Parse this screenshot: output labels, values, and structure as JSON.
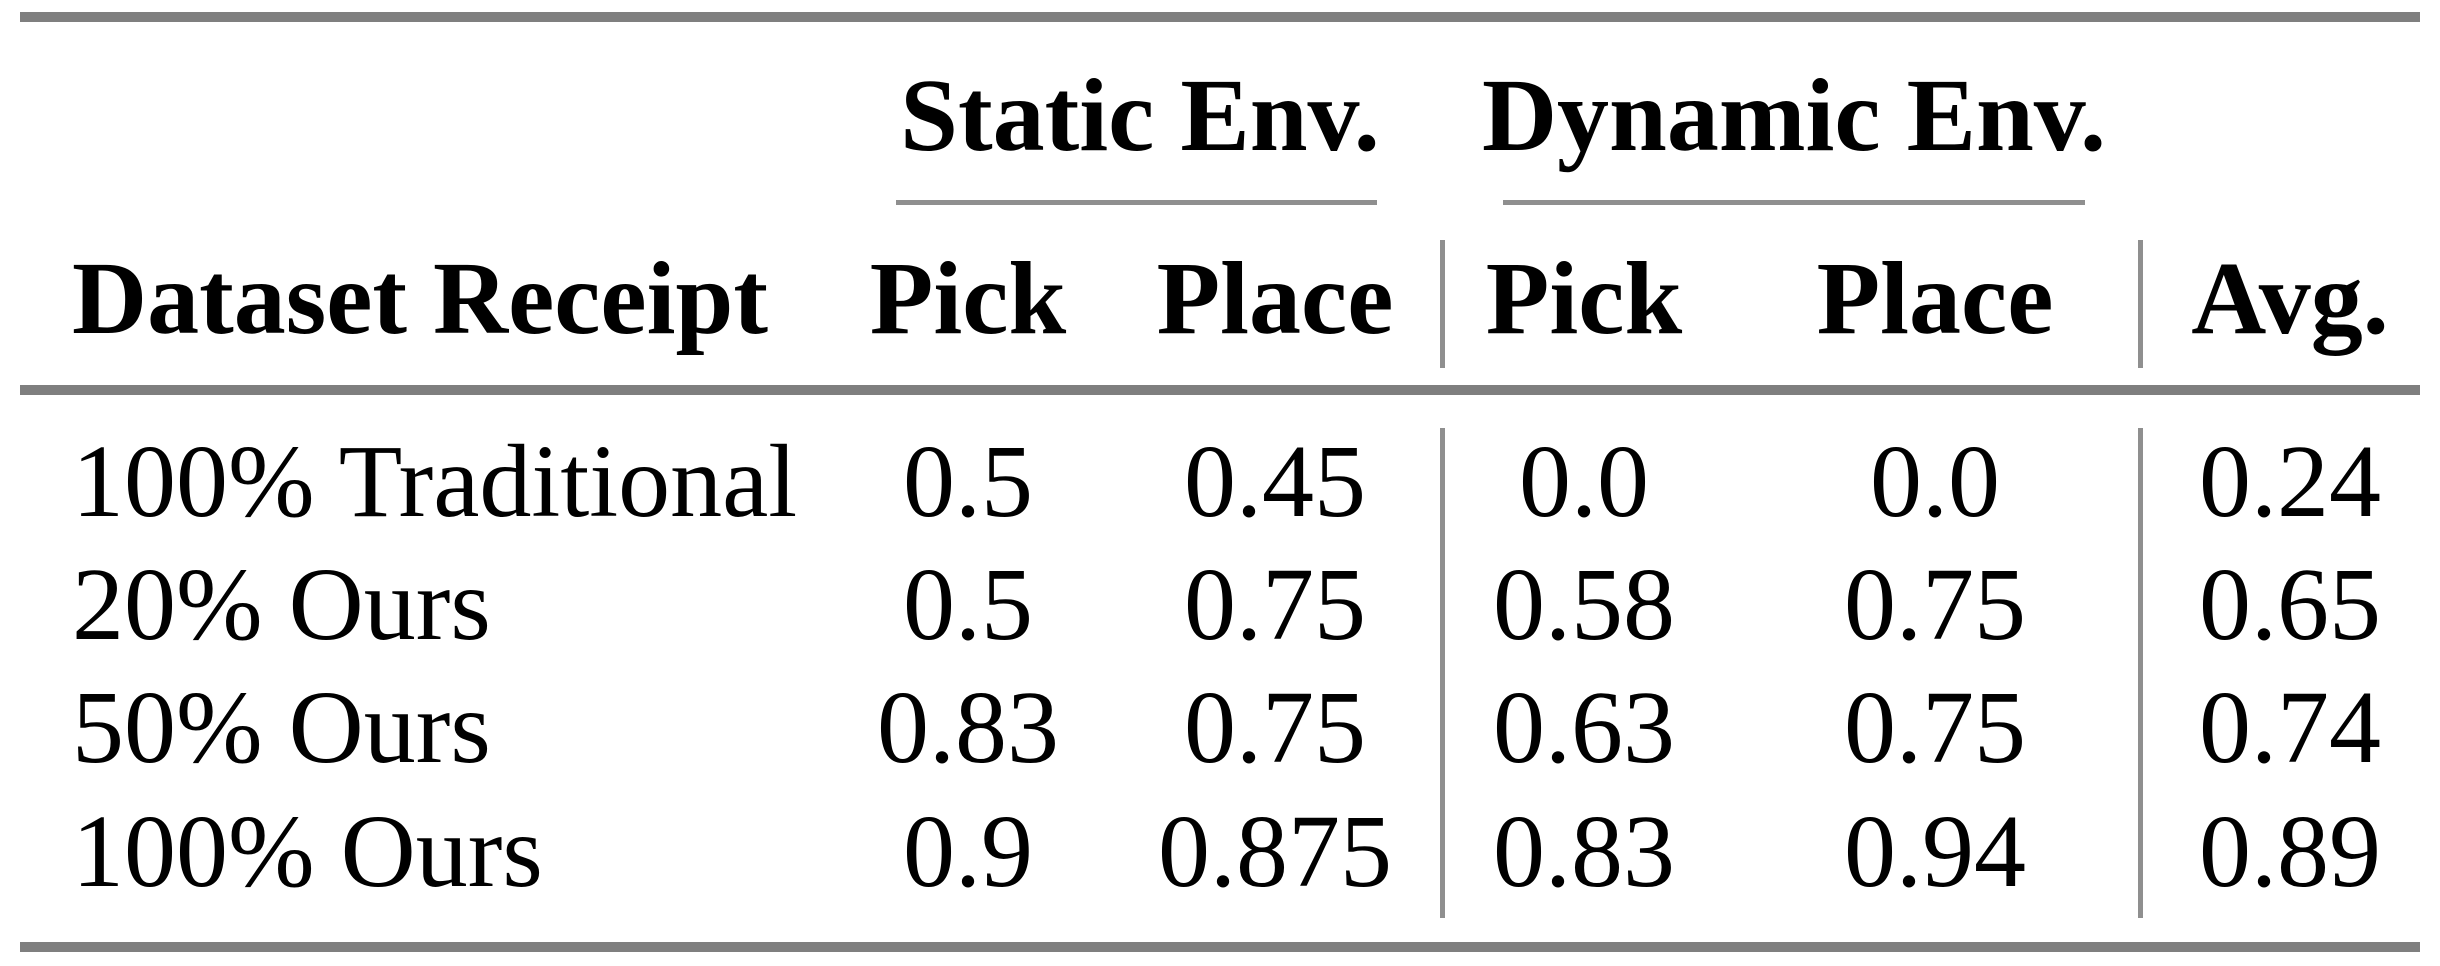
{
  "table": {
    "group_headers": {
      "static": "Static Env.",
      "dynamic": "Dynamic Env."
    },
    "columns": {
      "dataset": "Dataset Receipt",
      "static_pick": "Pick",
      "static_place": "Place",
      "dynamic_pick": "Pick",
      "dynamic_place": "Place",
      "avg": "Avg."
    },
    "rows": [
      {
        "label": "100% Traditional",
        "static_pick": "0.5",
        "static_place": "0.45",
        "dynamic_pick": "0.0",
        "dynamic_place": "0.0",
        "avg": "0.24"
      },
      {
        "label": "20% Ours",
        "static_pick": "0.5",
        "static_place": "0.75",
        "dynamic_pick": "0.58",
        "dynamic_place": "0.75",
        "avg": "0.65"
      },
      {
        "label": "50% Ours",
        "static_pick": "0.83",
        "static_place": "0.75",
        "dynamic_pick": "0.63",
        "dynamic_place": "0.75",
        "avg": "0.74"
      },
      {
        "label": "100% Ours",
        "static_pick": "0.9",
        "static_place": "0.875",
        "dynamic_pick": "0.83",
        "dynamic_place": "0.94",
        "avg": "0.89"
      }
    ],
    "colors": {
      "heavy_rule": "#7f7f7f",
      "thin_rule": "#8f8f8f",
      "text": "#000000",
      "background": "#ffffff"
    }
  }
}
